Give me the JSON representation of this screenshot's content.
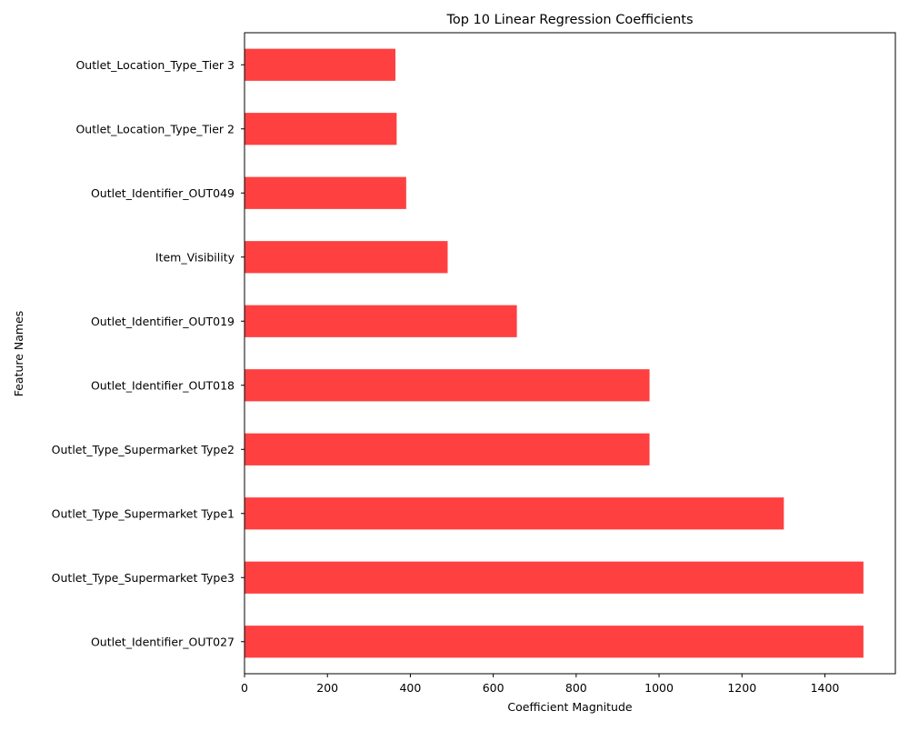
{
  "chart_data": {
    "type": "bar",
    "orientation": "horizontal",
    "title": "Top 10 Linear Regression Coefficients",
    "xlabel": "Coefficient Magnitude",
    "ylabel": "Feature Names",
    "xlim": [
      0,
      1570
    ],
    "xticks": [
      0,
      200,
      400,
      600,
      800,
      1000,
      1200,
      1400
    ],
    "grid": false,
    "bar_color": "#ff4040",
    "categories": [
      "Outlet_Identifier_OUT027",
      "Outlet_Type_Supermarket Type3",
      "Outlet_Type_Supermarket Type1",
      "Outlet_Type_Supermarket Type2",
      "Outlet_Identifier_OUT018",
      "Outlet_Identifier_OUT019",
      "Item_Visibility",
      "Outlet_Identifier_OUT049",
      "Outlet_Location_Type_Tier 2",
      "Outlet_Location_Type_Tier 3"
    ],
    "values": [
      1493,
      1493,
      1301,
      977,
      977,
      657,
      490,
      390,
      367,
      364
    ]
  }
}
